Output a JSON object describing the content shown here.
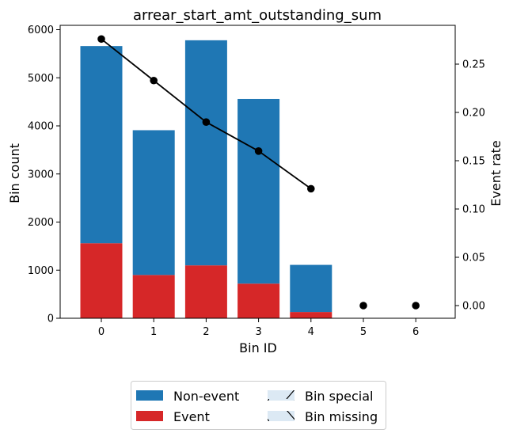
{
  "chart_data": {
    "type": "bar",
    "title": "arrear_start_amt_outstanding_sum",
    "xlabel": "Bin ID",
    "ylabel": "Bin count",
    "y2label": "Event rate",
    "categories": [
      "0",
      "1",
      "2",
      "3",
      "4",
      "5",
      "6"
    ],
    "ylim": [
      0,
      6000
    ],
    "y2lim": [
      -0.0138,
      0.2898
    ],
    "yticks": [
      "0",
      "1000",
      "2000",
      "3000",
      "4000",
      "5000",
      "6000"
    ],
    "y2ticks": [
      "0.00",
      "0.05",
      "0.10",
      "0.15",
      "0.20",
      "0.25"
    ],
    "series": [
      {
        "name": "Non-event",
        "color": "#1f77b4",
        "values": [
          4100,
          3010,
          4680,
          3840,
          980,
          0,
          0
        ]
      },
      {
        "name": "Event",
        "color": "#d62728",
        "values": [
          1560,
          900,
          1100,
          720,
          130,
          0,
          0
        ]
      }
    ],
    "event_rate": {
      "color": "#000000",
      "values": [
        0.276,
        0.233,
        0.19,
        0.16,
        0.121,
        0.0,
        0.0
      ],
      "line_through": 5
    },
    "legend": {
      "placement": "bottom",
      "entries": [
        {
          "label": "Non-event",
          "kind": "solid",
          "color": "#1f77b4"
        },
        {
          "label": "Event",
          "kind": "solid",
          "color": "#d62728"
        },
        {
          "label": "Bin special",
          "kind": "hatch-forward",
          "color": "#dce9f4"
        },
        {
          "label": "Bin missing",
          "kind": "hatch-back",
          "color": "#dce9f4"
        }
      ]
    }
  }
}
